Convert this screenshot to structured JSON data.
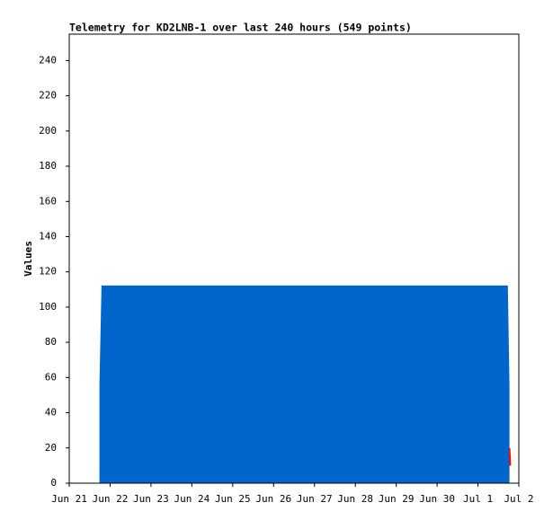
{
  "chart_data": {
    "type": "area",
    "title": "Telemetry for KD2LNB-1 over last 240 hours (549 points)",
    "y_label": "Values",
    "xlim": [
      0,
      11
    ],
    "xticks": [
      {
        "value": 0,
        "label": "Jun 21"
      },
      {
        "value": 1,
        "label": "Jun 22"
      },
      {
        "value": 2,
        "label": "Jun 23"
      },
      {
        "value": 3,
        "label": "Jun 24"
      },
      {
        "value": 4,
        "label": "Jun 25"
      },
      {
        "value": 5,
        "label": "Jun 26"
      },
      {
        "value": 6,
        "label": "Jun 27"
      },
      {
        "value": 7,
        "label": "Jun 28"
      },
      {
        "value": 8,
        "label": "Jun 29"
      },
      {
        "value": 9,
        "label": "Jun 30"
      },
      {
        "value": 10,
        "label": "Jul 1"
      },
      {
        "value": 11,
        "label": "Jul 2"
      }
    ],
    "ylim": [
      0,
      255
    ],
    "yticks": [
      0,
      20,
      40,
      60,
      80,
      100,
      120,
      140,
      160,
      180,
      200,
      220,
      240
    ],
    "series": [
      {
        "color": "#0066cc",
        "fill": true,
        "x": [
          0.75,
          0.8,
          10.72,
          10.76
        ],
        "values": [
          56,
          112,
          112,
          56
        ]
      },
      {
        "color": "#ff0000",
        "fill": false,
        "x": [
          10.77,
          10.79
        ],
        "values": [
          20,
          10
        ]
      }
    ]
  }
}
